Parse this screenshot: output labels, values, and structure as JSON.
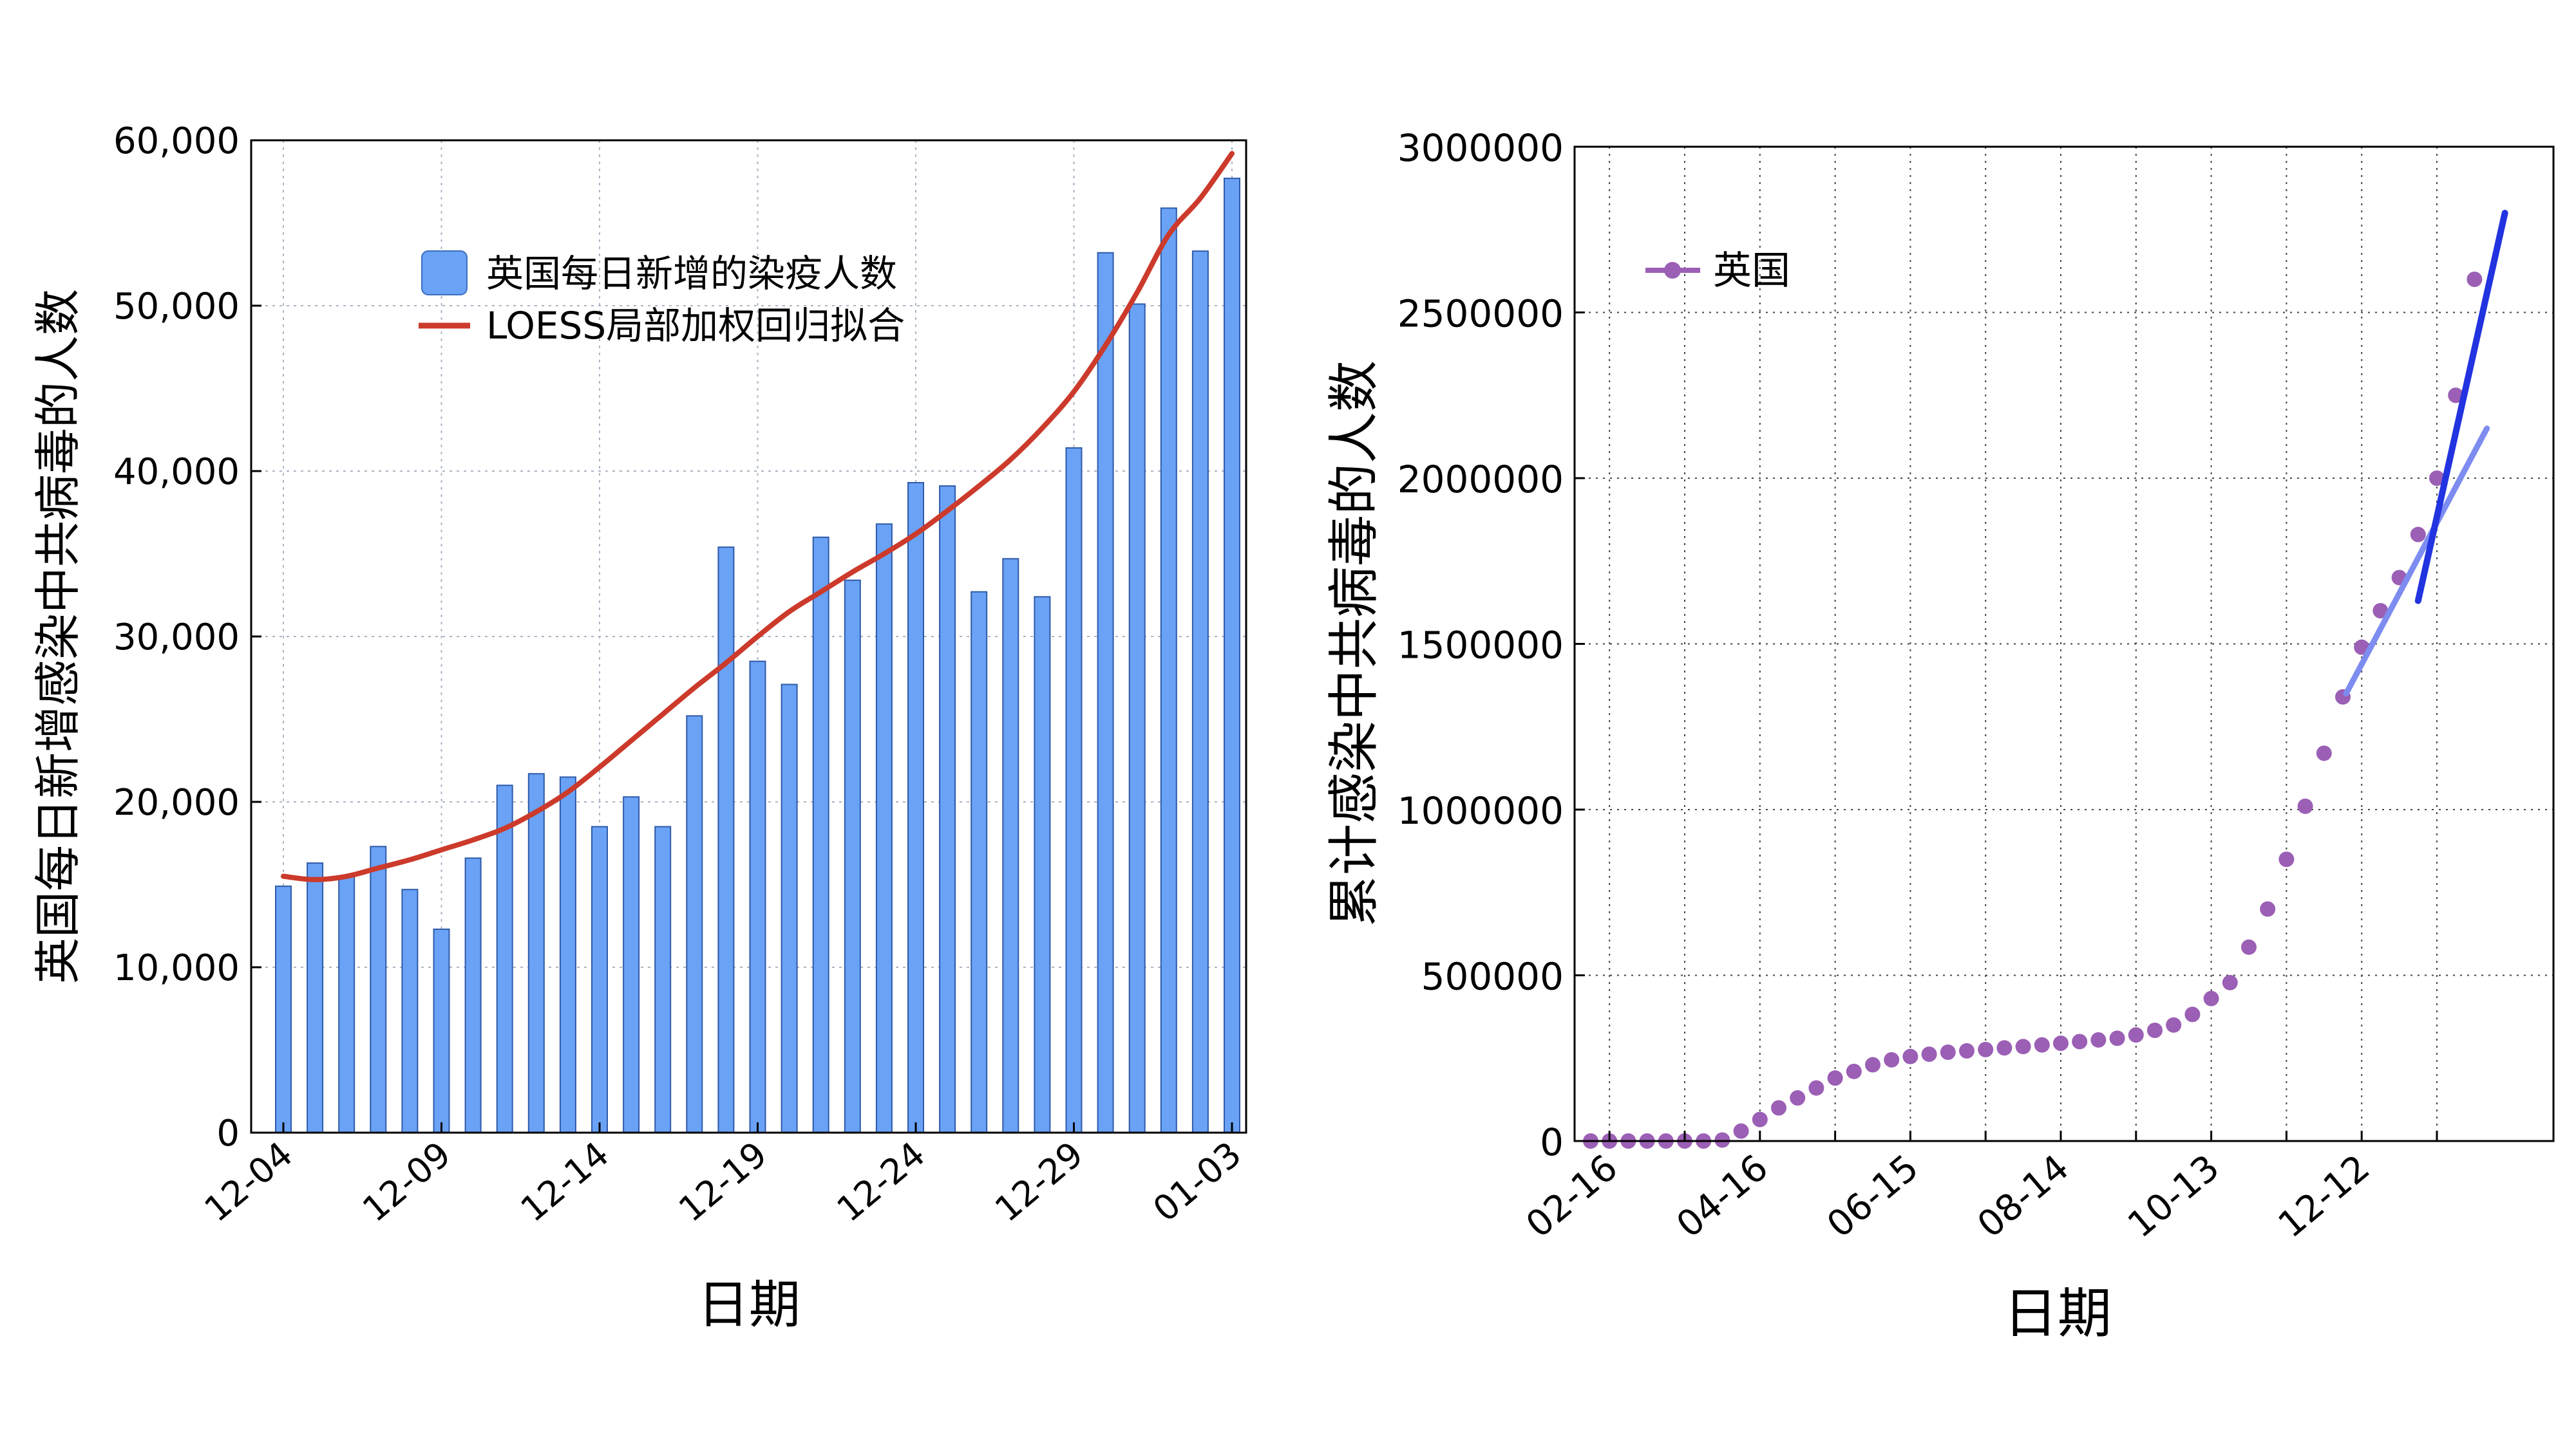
{
  "chart_data": [
    {
      "type": "bar",
      "xlabel": "日期",
      "ylabel": "英国每日新增感染中共病毒的人数",
      "ylim": [
        0,
        60000
      ],
      "yticks": [
        0,
        10000,
        20000,
        30000,
        40000,
        50000,
        60000
      ],
      "ytick_labels": [
        "0",
        "10,000",
        "20,000",
        "30,000",
        "40,000",
        "50,000",
        "60,000"
      ],
      "xtick_labels": [
        "12-04",
        "12-09",
        "12-14",
        "12-19",
        "12-24",
        "12-29",
        "01-03"
      ],
      "categories": [
        "12-04",
        "12-05",
        "12-06",
        "12-07",
        "12-08",
        "12-09",
        "12-10",
        "12-11",
        "12-12",
        "12-13",
        "12-14",
        "12-15",
        "12-16",
        "12-17",
        "12-18",
        "12-19",
        "12-20",
        "12-21",
        "12-22",
        "12-23",
        "12-24",
        "12-25",
        "12-26",
        "12-27",
        "12-28",
        "12-29",
        "12-30",
        "12-31",
        "01-01",
        "01-02",
        "01-03"
      ],
      "grid": true,
      "legend_position": "upper-center",
      "series": [
        {
          "name": "英国每日新增的染疫人数",
          "kind": "bar",
          "color": "#6aa2f6",
          "values": [
            14900,
            16300,
            15500,
            17300,
            14700,
            12300,
            16600,
            21000,
            21700,
            21500,
            18500,
            20300,
            18500,
            25200,
            35400,
            28500,
            27100,
            36000,
            33400,
            36800,
            39300,
            39100,
            32700,
            34700,
            32400,
            41400,
            53200,
            50100,
            55900,
            53300,
            57700
          ]
        },
        {
          "name": "LOESS局部加权回归拟合",
          "kind": "line",
          "color": "#cc3a2b",
          "values": [
            15500,
            15300,
            15500,
            16000,
            16500,
            17100,
            17700,
            18400,
            19400,
            20600,
            22100,
            23700,
            25300,
            26900,
            28400,
            30000,
            31500,
            32700,
            33900,
            35000,
            36200,
            37600,
            39100,
            40700,
            42600,
            44800,
            47600,
            50800,
            54300,
            56500,
            59200
          ]
        }
      ]
    },
    {
      "type": "scatter",
      "xlabel": "日期",
      "ylabel": "累计感染中共病毒的人数",
      "ylim": [
        0,
        3000000
      ],
      "yticks": [
        0,
        500000,
        1000000,
        1500000,
        2000000,
        2500000,
        3000000
      ],
      "ytick_labels": [
        "0",
        "500000",
        "1000000",
        "1500000",
        "2000000",
        "2500000",
        "3000000"
      ],
      "xtick_labels": [
        "02-16",
        "04-16",
        "06-15",
        "08-14",
        "10-13",
        "12-12"
      ],
      "grid": true,
      "legend_position": "top-left",
      "series": [
        {
          "name": "英国",
          "kind": "scatter",
          "color": "#9b5fb5",
          "values": [
            0,
            0,
            0,
            0,
            0,
            0,
            0,
            3000,
            30000,
            65000,
            100000,
            130000,
            160000,
            190000,
            210000,
            230000,
            245000,
            255000,
            262000,
            268000,
            272000,
            276000,
            281000,
            285000,
            290000,
            295000,
            300000,
            305000,
            310000,
            320000,
            334000,
            350000,
            382000,
            430000,
            478000,
            585000,
            700000,
            850000,
            1010000,
            1170000,
            1340000,
            1490000,
            1600000,
            1700000,
            1830000,
            2000000,
            2250000,
            2600000
          ]
        }
      ],
      "fit_lines": [
        {
          "color": "#7d8cf0",
          "y_start": 1350000,
          "y_end": 2150000
        },
        {
          "color": "#2233e0",
          "y_start": 1630000,
          "y_end": 2800000
        }
      ]
    }
  ]
}
